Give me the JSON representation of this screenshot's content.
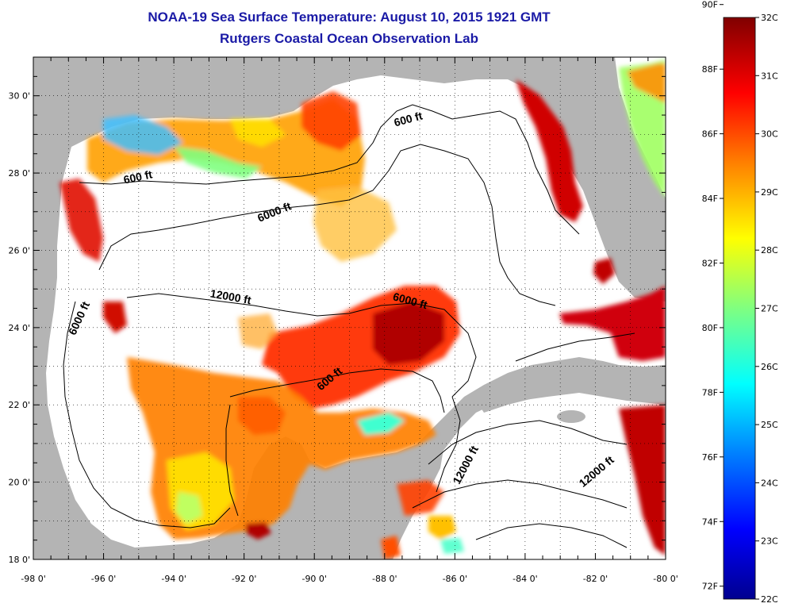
{
  "title": "NOAA-19 Sea Surface Temperature:  August 10, 2015 1921 GMT",
  "subtitle": "Rutgers Coastal Ocean Observation Lab",
  "map": {
    "lon_range": [
      -98,
      -80
    ],
    "lat_range": [
      18,
      31
    ],
    "lon_ticks": [
      "-98 0'",
      "-96 0'",
      "-94 0'",
      "-92 0'",
      "-90 0'",
      "-88 0'",
      "-86 0'",
      "-84 0'",
      "-82 0'",
      "-80 0'"
    ],
    "lat_ticks": [
      "30 0'",
      "28 0'",
      "26 0'",
      "24 0'",
      "22 0'",
      "20 0'",
      "18 0'"
    ],
    "grid": "dotted",
    "land_color": "#b4b4b4",
    "no_data_color": "#ffffff",
    "contour_labels": [
      {
        "text": "600 ft",
        "lon": -95.0,
        "lat": 27.8,
        "angle": -12
      },
      {
        "text": "600 ft",
        "lon": -87.3,
        "lat": 29.3,
        "angle": -15
      },
      {
        "text": "6000 ft",
        "lon": -91.1,
        "lat": 26.9,
        "angle": -22
      },
      {
        "text": "12000 ft",
        "lon": -92.4,
        "lat": 24.7,
        "angle": 10
      },
      {
        "text": "6000 ft",
        "lon": -87.3,
        "lat": 24.6,
        "angle": 15
      },
      {
        "text": "6000 ft",
        "lon": -96.6,
        "lat": 24.2,
        "angle": -65
      },
      {
        "text": "600 ft",
        "lon": -89.5,
        "lat": 22.6,
        "angle": -40
      },
      {
        "text": "12000 ft",
        "lon": -85.6,
        "lat": 20.4,
        "angle": -62
      },
      {
        "text": "12000 ft",
        "lon": -81.9,
        "lat": 20.2,
        "angle": -40
      }
    ]
  },
  "colorbar": {
    "fahrenheit_labels": [
      "90F",
      "88F",
      "86F",
      "84F",
      "82F",
      "80F",
      "78F",
      "76F",
      "74F",
      "72F"
    ],
    "celsius_labels": [
      "32C",
      "31C",
      "30C",
      "29C",
      "28C",
      "27C",
      "26C",
      "25C",
      "24C",
      "23C",
      "22C"
    ],
    "range_c": [
      22,
      32
    ],
    "colors_bottom_to_top": [
      "#00008f",
      "#0000ff",
      "#0080ff",
      "#00ffff",
      "#80ff80",
      "#ffff00",
      "#ff8000",
      "#ff0000",
      "#800000"
    ]
  }
}
